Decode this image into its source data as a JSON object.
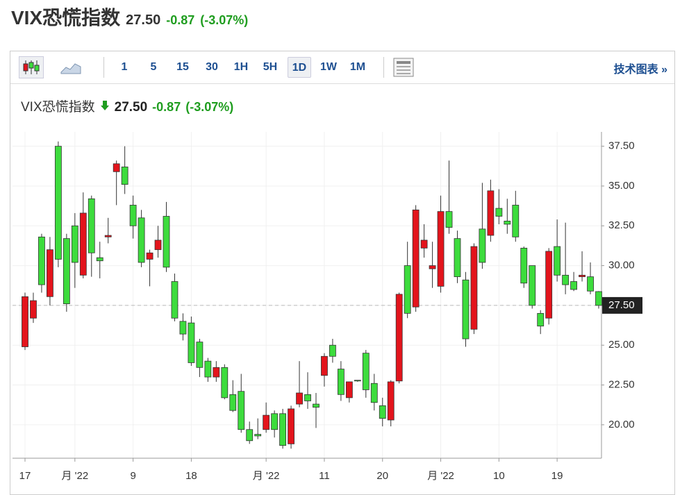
{
  "header": {
    "title": "VIX恐慌指数",
    "price": "27.50",
    "change": "-0.87",
    "change_pct": "(-3.07%)"
  },
  "toolbar": {
    "intervals": [
      "1",
      "5",
      "15",
      "30",
      "1H",
      "5H",
      "1D",
      "1W",
      "1M"
    ],
    "active": "1D",
    "link": "技术图表 »"
  },
  "chart_data": {
    "type": "candlestick",
    "legend": {
      "name": "VIX恐慌指数",
      "price": "27.50",
      "change": "-0.87",
      "change_pct": "(-3.07%)"
    },
    "categories": [
      "17",
      null,
      null,
      null,
      null,
      null,
      "月 '22",
      null,
      null,
      null,
      null,
      null,
      null,
      "9",
      null,
      null,
      null,
      null,
      null,
      null,
      "18",
      null,
      null,
      null,
      null,
      null,
      null,
      null,
      null,
      "月 '22",
      null,
      null,
      null,
      null,
      null,
      null,
      "11",
      null,
      null,
      null,
      null,
      null,
      null,
      "20",
      null,
      null,
      null,
      null,
      null,
      null,
      "月 '22",
      null,
      null,
      null,
      null,
      null,
      null,
      "10",
      null,
      null,
      null,
      null,
      null,
      null,
      "19",
      null,
      null,
      null,
      null,
      null
    ],
    "open": [
      24.9,
      26.7,
      31.8,
      28.05,
      37.5,
      31.7,
      32.5,
      29.4,
      34.2,
      30.5,
      31.8,
      35.9,
      36.2,
      33.8,
      33.0,
      30.4,
      31.0,
      33.1,
      29.0,
      26.5,
      26.4,
      25.2,
      24.0,
      23.0,
      23.6,
      21.9,
      22.1,
      19.7,
      19.4,
      19.7,
      20.7,
      20.7,
      18.8,
      21.3,
      21.9,
      21.3,
      23.1,
      25.0,
      23.5,
      21.7,
      22.8,
      24.5,
      22.6,
      21.2,
      20.3,
      22.75,
      30.0,
      27.4,
      31.1,
      29.8,
      28.7,
      33.4,
      31.7,
      29.1,
      26.0,
      32.3,
      31.9,
      33.6,
      32.8,
      33.8,
      31.1,
      30.0,
      27.0,
      26.7,
      31.2,
      29.4,
      29.0,
      29.3,
      29.3,
      28.37
    ],
    "high": [
      28.3,
      28.3,
      32.0,
      31.8,
      37.8,
      32.0,
      33.3,
      34.6,
      34.4,
      31.5,
      33.0,
      36.6,
      37.5,
      34.4,
      33.5,
      31.0,
      32.5,
      34.0,
      29.5,
      27.0,
      26.8,
      25.4,
      24.2,
      24.0,
      23.8,
      22.8,
      23.2,
      20.2,
      20.4,
      21.4,
      20.9,
      21.0,
      21.2,
      24.0,
      23.3,
      22.0,
      24.5,
      25.4,
      24.0,
      22.7,
      22.8,
      24.7,
      23.2,
      21.7,
      22.8,
      28.3,
      31.5,
      33.8,
      32.6,
      31.5,
      34.4,
      36.6,
      32.2,
      29.6,
      31.4,
      35.2,
      35.4,
      34.8,
      34.2,
      34.7,
      31.2,
      30.0,
      27.2,
      31.1,
      32.9,
      32.7,
      29.6,
      30.9,
      30.2,
      28.4
    ],
    "low": [
      24.7,
      26.4,
      28.3,
      27.5,
      29.9,
      27.1,
      28.6,
      29.2,
      29.3,
      29.2,
      31.4,
      33.8,
      34.5,
      31.7,
      29.9,
      28.7,
      30.5,
      29.6,
      26.5,
      25.3,
      23.7,
      23.0,
      22.7,
      22.7,
      21.6,
      20.8,
      19.5,
      18.8,
      19.1,
      19.5,
      19.2,
      18.5,
      18.5,
      21.1,
      21.0,
      19.8,
      22.4,
      23.9,
      21.5,
      21.4,
      22.7,
      21.7,
      20.9,
      19.9,
      19.9,
      22.6,
      26.7,
      27.1,
      30.5,
      28.6,
      28.3,
      32.0,
      28.9,
      24.9,
      25.7,
      29.8,
      31.5,
      32.6,
      32.0,
      31.5,
      28.6,
      27.3,
      25.7,
      26.3,
      29.0,
      28.2,
      28.4,
      29.0,
      28.2,
      27.3
    ],
    "close": [
      28.05,
      27.8,
      28.8,
      31.0,
      30.4,
      27.6,
      30.2,
      33.3,
      30.8,
      30.3,
      31.9,
      36.4,
      35.1,
      32.5,
      30.2,
      30.8,
      31.6,
      29.9,
      26.7,
      25.7,
      23.9,
      23.6,
      23.0,
      23.6,
      21.7,
      20.9,
      19.7,
      19.0,
      19.3,
      20.6,
      19.7,
      18.7,
      21.0,
      22.0,
      21.5,
      21.1,
      24.3,
      24.3,
      21.9,
      22.7,
      22.75,
      22.2,
      21.4,
      20.4,
      22.7,
      28.2,
      27.0,
      33.5,
      31.6,
      30.0,
      33.4,
      32.4,
      29.3,
      25.4,
      31.2,
      30.2,
      34.7,
      33.1,
      32.6,
      31.8,
      28.9,
      27.5,
      26.2,
      30.9,
      29.4,
      28.8,
      28.5,
      29.4,
      28.4,
      27.5
    ],
    "up_color": "#e3141c",
    "down_color": "#3ddc3d",
    "ylim": [
      17.9,
      38.4
    ],
    "yticks": [
      {
        "value": 20,
        "label": "20.00"
      },
      {
        "value": 22.5,
        "label": "22.50"
      },
      {
        "value": 25,
        "label": "25.00"
      },
      {
        "value": 27.5,
        "label": "27.50"
      },
      {
        "value": 30,
        "label": "30.00"
      },
      {
        "value": 32.5,
        "label": "32.50"
      },
      {
        "value": 35,
        "label": "35.00"
      },
      {
        "value": 37.5,
        "label": "37.50"
      }
    ],
    "last_price": {
      "value": 27.5,
      "label": "27.50"
    },
    "grid": true
  }
}
